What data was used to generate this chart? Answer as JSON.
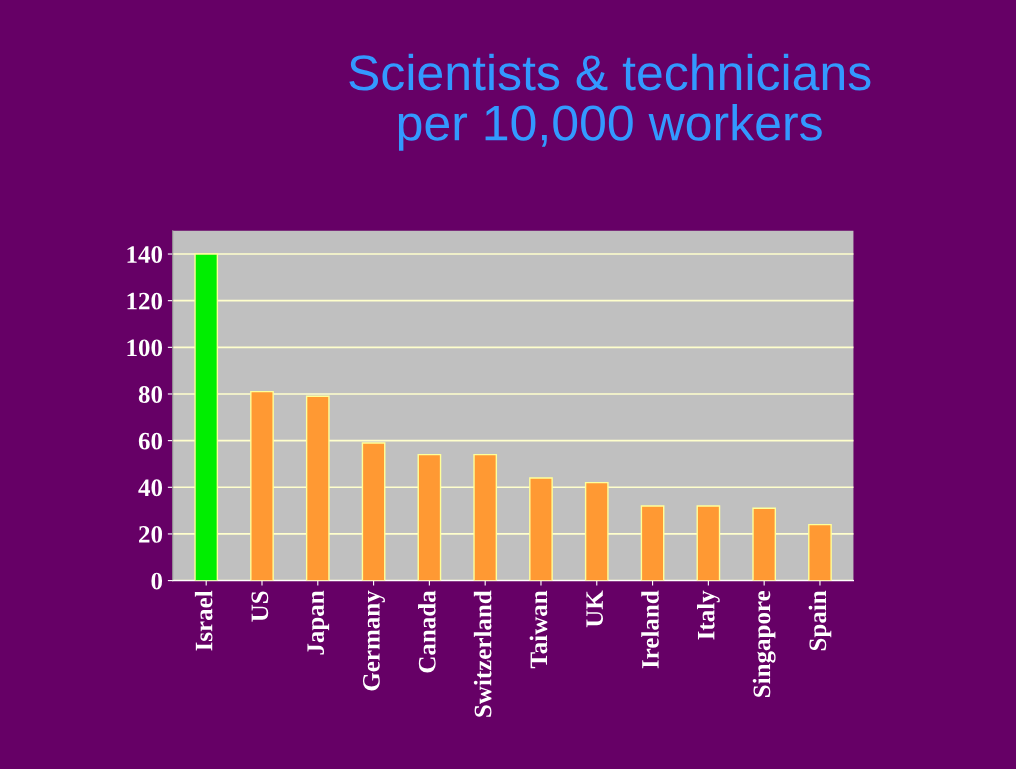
{
  "chart_data": {
    "type": "bar",
    "title": "Scientists & technicians\nper 10,000 workers",
    "categories": [
      "Israel",
      "US",
      "Japan",
      "Germany",
      "Canada",
      "Switzerland",
      "Taiwan",
      "UK",
      "Ireland",
      "Italy",
      "Singapore",
      "Spain"
    ],
    "values": [
      140,
      81,
      79,
      59,
      54,
      54,
      44,
      42,
      32,
      32,
      31,
      24
    ],
    "colors": [
      "#00ee00",
      "#ff9933",
      "#ff9933",
      "#ff9933",
      "#ff9933",
      "#ff9933",
      "#ff9933",
      "#ff9933",
      "#ff9933",
      "#ff9933",
      "#ff9933",
      "#ff9933"
    ],
    "ylim": [
      0,
      150
    ],
    "yticks": [
      0,
      20,
      40,
      60,
      80,
      100,
      120,
      140
    ],
    "grid": "y"
  }
}
